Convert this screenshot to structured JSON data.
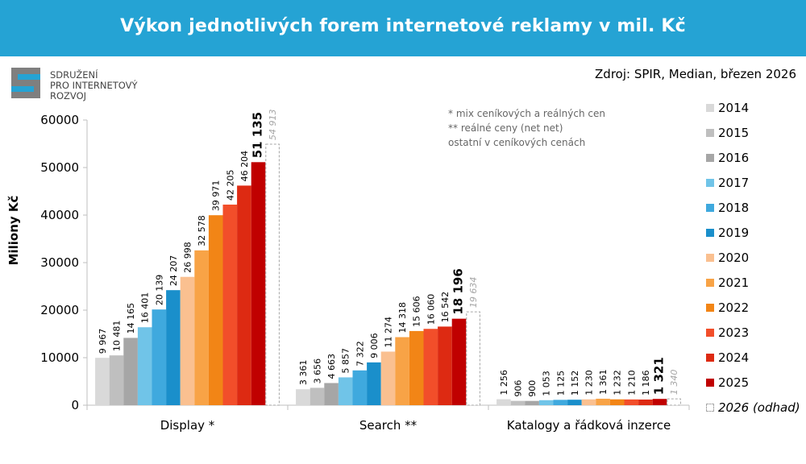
{
  "header": {
    "title": "Výkon jednotlivých forem internetové reklamy v mil. Kč"
  },
  "logo": {
    "lines": [
      "SDRUŽENÍ",
      "PRO INTERNETOVÝ",
      "ROZVOJ"
    ]
  },
  "source": "Zdroj: SPIR, Median, březen 2026",
  "notes": [
    "* mix ceníkových a reálných cen",
    "** reálné ceny (net net)",
    "ostatní v ceníkových cenách"
  ],
  "colors": {
    "banner": "#25a3d4",
    "2014": "#d9d9d9",
    "2015": "#bfbfbf",
    "2016": "#a6a6a6",
    "2017": "#70c4e8",
    "2018": "#3fa9de",
    "2019": "#1a8fcb",
    "2020": "#fac090",
    "2021": "#f8a346",
    "2022": "#f28516",
    "2023": "#f24e2a",
    "2024": "#dd2a12",
    "2025": "#c00000",
    "2026": "#ffffff"
  },
  "chart_data": {
    "type": "bar",
    "ylabel": "Miliony Kč",
    "ylim": [
      0,
      60000
    ],
    "yticks": [
      "0",
      "10000",
      "20000",
      "30000",
      "40000",
      "50000",
      "60000"
    ],
    "grid": false,
    "legend_position": "right",
    "categories": [
      "Display *",
      "Search **",
      "Katalogy a řádková inzerce"
    ],
    "series": [
      {
        "name": "2014",
        "values": [
          9967,
          3361,
          1256
        ],
        "labels": [
          "9 967",
          "3 361",
          "1 256"
        ]
      },
      {
        "name": "2015",
        "values": [
          10481,
          3656,
          906
        ],
        "labels": [
          "10 481",
          "3 656",
          "906"
        ]
      },
      {
        "name": "2016",
        "values": [
          14165,
          4663,
          900
        ],
        "labels": [
          "14 165",
          "4 663",
          "900"
        ]
      },
      {
        "name": "2017",
        "values": [
          16401,
          5857,
          1053
        ],
        "labels": [
          "16 401",
          "5 857",
          "1 053"
        ]
      },
      {
        "name": "2018",
        "values": [
          20139,
          7322,
          1125
        ],
        "labels": [
          "20 139",
          "7 322",
          "1 125"
        ]
      },
      {
        "name": "2019",
        "values": [
          24207,
          9006,
          1152
        ],
        "labels": [
          "24 207",
          "9 006",
          "1 152"
        ]
      },
      {
        "name": "2020",
        "values": [
          26998,
          11274,
          1230
        ],
        "labels": [
          "26 998",
          "11 274",
          "1 230"
        ]
      },
      {
        "name": "2021",
        "values": [
          32578,
          14318,
          1361
        ],
        "labels": [
          "32 578",
          "14 318",
          "1 361"
        ]
      },
      {
        "name": "2022",
        "values": [
          39971,
          15606,
          1232
        ],
        "labels": [
          "39 971",
          "15 606",
          "1 232"
        ]
      },
      {
        "name": "2023",
        "values": [
          42205,
          16060,
          1210
        ],
        "labels": [
          "42 205",
          "16 060",
          "1 210"
        ]
      },
      {
        "name": "2024",
        "values": [
          46204,
          16542,
          1186
        ],
        "labels": [
          "46 204",
          "16 542",
          "1 186"
        ]
      },
      {
        "name": "2025",
        "values": [
          51135,
          18196,
          1321
        ],
        "labels": [
          "51 135",
          "18 196",
          "1 321"
        ]
      },
      {
        "name": "2026 (odhad)",
        "values": [
          54913,
          19634,
          1340
        ],
        "labels": [
          "54 913",
          "19 634",
          "1 340"
        ]
      }
    ]
  }
}
